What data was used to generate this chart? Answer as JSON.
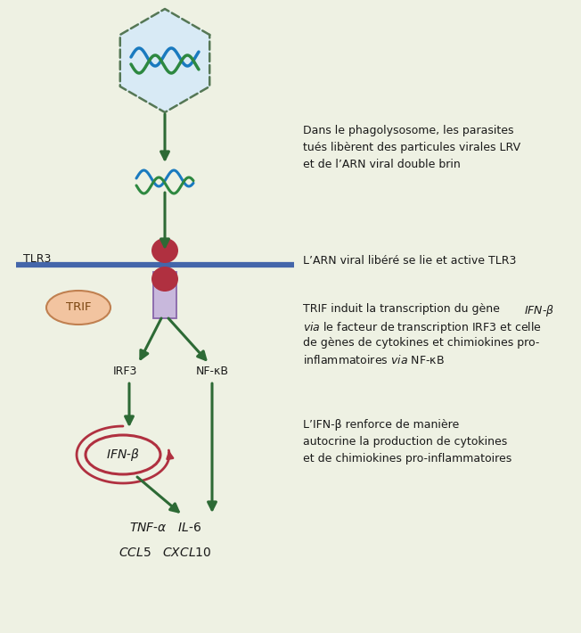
{
  "bg_color": "#eef1e3",
  "dark_green": "#2d6a35",
  "red_oval": "#b03040",
  "blue_line": "#4466aa",
  "light_blue_hex": "#d8eaf5",
  "light_purple": "#c8b8dc",
  "purple_edge": "#8866aa",
  "trif_fill": "#f2c4a0",
  "trif_edge": "#c08050",
  "label_dark": "#1a1a1a",
  "text_color": "#1a1a1a",
  "text1": "Dans le phagolysosome, les parasites\ntués libèrent des particules virales LRV\net de l’ARN viral double brin",
  "text2": "L’ARN viral libéré se lie et active TLR3",
  "text4": "L’IFN-β renforce de manière\nautocrine la production de cytokines\net de chimiokines pro-inflammatoires"
}
